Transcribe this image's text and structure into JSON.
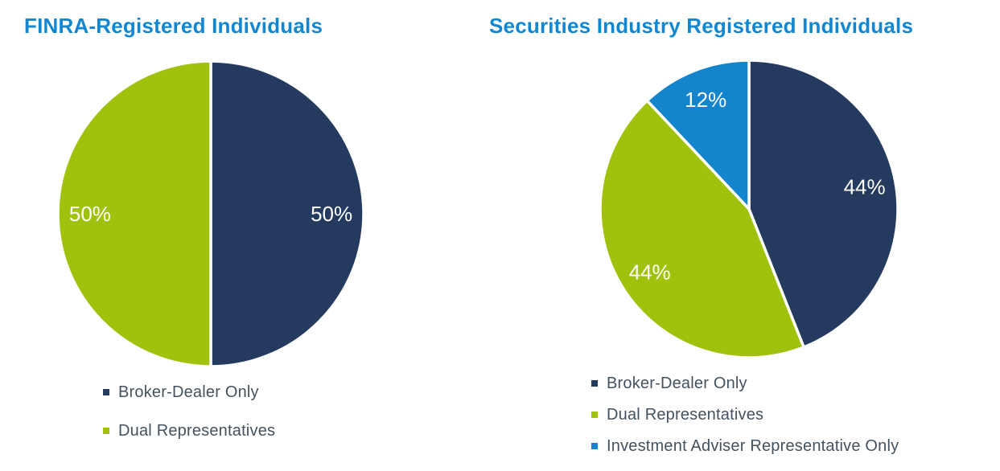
{
  "page_background": "#FFFFFF",
  "text_colors": {
    "title": "#1287D1",
    "legend": "#44525F",
    "data_label": "#FFFFFF"
  },
  "chart_data": [
    {
      "type": "pie",
      "title": "FINRA-Registered Individuals",
      "categories": [
        "Broker-Dealer Only",
        "Dual Representatives"
      ],
      "values": [
        50,
        50
      ],
      "data_labels": [
        "50%",
        "50%"
      ],
      "slice_colors": [
        "#243B5F",
        "#A1C20D"
      ],
      "start_angle_deg": 0,
      "direction": "clockwise",
      "legend_position": "bottom-left",
      "legend": [
        {
          "label": "Broker-Dealer Only",
          "color": "#243B5F"
        },
        {
          "label": "Dual Representatives",
          "color": "#A1C20D"
        }
      ]
    },
    {
      "type": "pie",
      "title": "Securities Industry Registered Individuals",
      "categories": [
        "Broker-Dealer Only",
        "Dual Representatives",
        "Investment Adviser Representative Only"
      ],
      "values": [
        44,
        44,
        12
      ],
      "data_labels": [
        "44%",
        "44%",
        "12%"
      ],
      "slice_colors": [
        "#243B5F",
        "#A1C20D",
        "#1484CD"
      ],
      "start_angle_deg": 0,
      "direction": "clockwise",
      "legend_position": "bottom-left",
      "legend": [
        {
          "label": "Broker-Dealer Only",
          "color": "#243B5F"
        },
        {
          "label": "Dual Representatives",
          "color": "#A1C20D"
        },
        {
          "label": "Investment Adviser Representative Only",
          "color": "#1484CD"
        }
      ]
    }
  ]
}
